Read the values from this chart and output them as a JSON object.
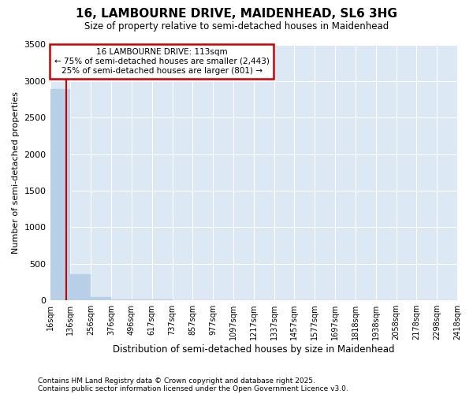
{
  "title": "16, LAMBOURNE DRIVE, MAIDENHEAD, SL6 3HG",
  "subtitle": "Size of property relative to semi-detached houses in Maidenhead",
  "xlabel": "Distribution of semi-detached houses by size in Maidenhead",
  "ylabel": "Number of semi-detached properties",
  "footnote1": "Contains HM Land Registry data © Crown copyright and database right 2025.",
  "footnote2": "Contains public sector information licensed under the Open Government Licence v3.0.",
  "bar_edges": [
    16,
    136,
    256,
    376,
    496,
    617,
    737,
    857,
    977,
    1097,
    1217,
    1337,
    1457,
    1577,
    1697,
    1818,
    1938,
    2058,
    2178,
    2298,
    2418
  ],
  "bar_heights": [
    2890,
    360,
    40,
    15,
    8,
    5,
    3,
    2,
    2,
    2,
    1,
    1,
    1,
    1,
    1,
    1,
    1,
    1,
    1,
    1
  ],
  "bar_color": "#b8cfe8",
  "bar_edge_color": "#b8cfe8",
  "bg_color": "#dde8f5",
  "grid_color": "#ffffff",
  "vline_x": 113,
  "vline_color": "#cc0000",
  "annotation_title": "16 LAMBOURNE DRIVE: 113sqm",
  "annotation_line1": "← 75% of semi-detached houses are smaller (2,443)",
  "annotation_line2": "25% of semi-detached houses are larger (801) →",
  "annotation_box_color": "#cc0000",
  "ylim": [
    0,
    3500
  ],
  "yticks": [
    0,
    500,
    1000,
    1500,
    2000,
    2500,
    3000,
    3500
  ]
}
